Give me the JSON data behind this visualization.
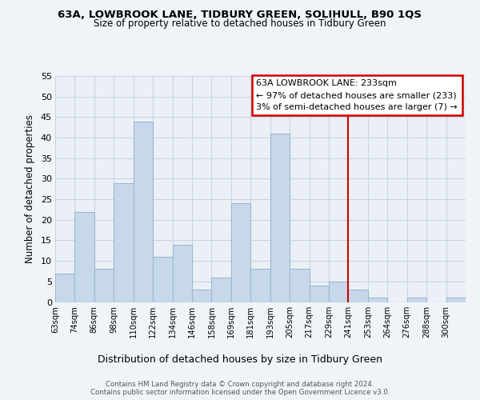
{
  "title": "63A, LOWBROOK LANE, TIDBURY GREEN, SOLIHULL, B90 1QS",
  "subtitle": "Size of property relative to detached houses in Tidbury Green",
  "xlabel": "Distribution of detached houses by size in Tidbury Green",
  "ylabel": "Number of detached properties",
  "bin_labels": [
    "63sqm",
    "74sqm",
    "86sqm",
    "98sqm",
    "110sqm",
    "122sqm",
    "134sqm",
    "146sqm",
    "158sqm",
    "169sqm",
    "181sqm",
    "193sqm",
    "205sqm",
    "217sqm",
    "229sqm",
    "241sqm",
    "253sqm",
    "264sqm",
    "276sqm",
    "288sqm",
    "300sqm"
  ],
  "bar_heights": [
    7,
    22,
    8,
    29,
    44,
    11,
    14,
    3,
    6,
    24,
    8,
    41,
    8,
    4,
    5,
    3,
    1,
    0,
    1,
    0,
    1
  ],
  "bar_color": "#c8d8eb",
  "bar_edgecolor": "#9ab8d0",
  "vline_color": "#cc0000",
  "ann_line1": "63A LOWBROOK LANE: 233sqm",
  "ann_line2": "← 97% of detached houses are smaller (233)",
  "ann_line3": "3% of semi-detached houses are larger (7) →",
  "ann_box_color": "#cc0000",
  "ylim": [
    0,
    55
  ],
  "yticks": [
    0,
    5,
    10,
    15,
    20,
    25,
    30,
    35,
    40,
    45,
    50,
    55
  ],
  "footer_text": "Contains HM Land Registry data © Crown copyright and database right 2024.\nContains public sector information licensed under the Open Government Licence v3.0.",
  "background_color": "#f0f4f8",
  "plot_bg_color": "#eaf0f6",
  "grid_color": "#c8d4e0",
  "title_fontsize": 9.5,
  "subtitle_fontsize": 8.5
}
